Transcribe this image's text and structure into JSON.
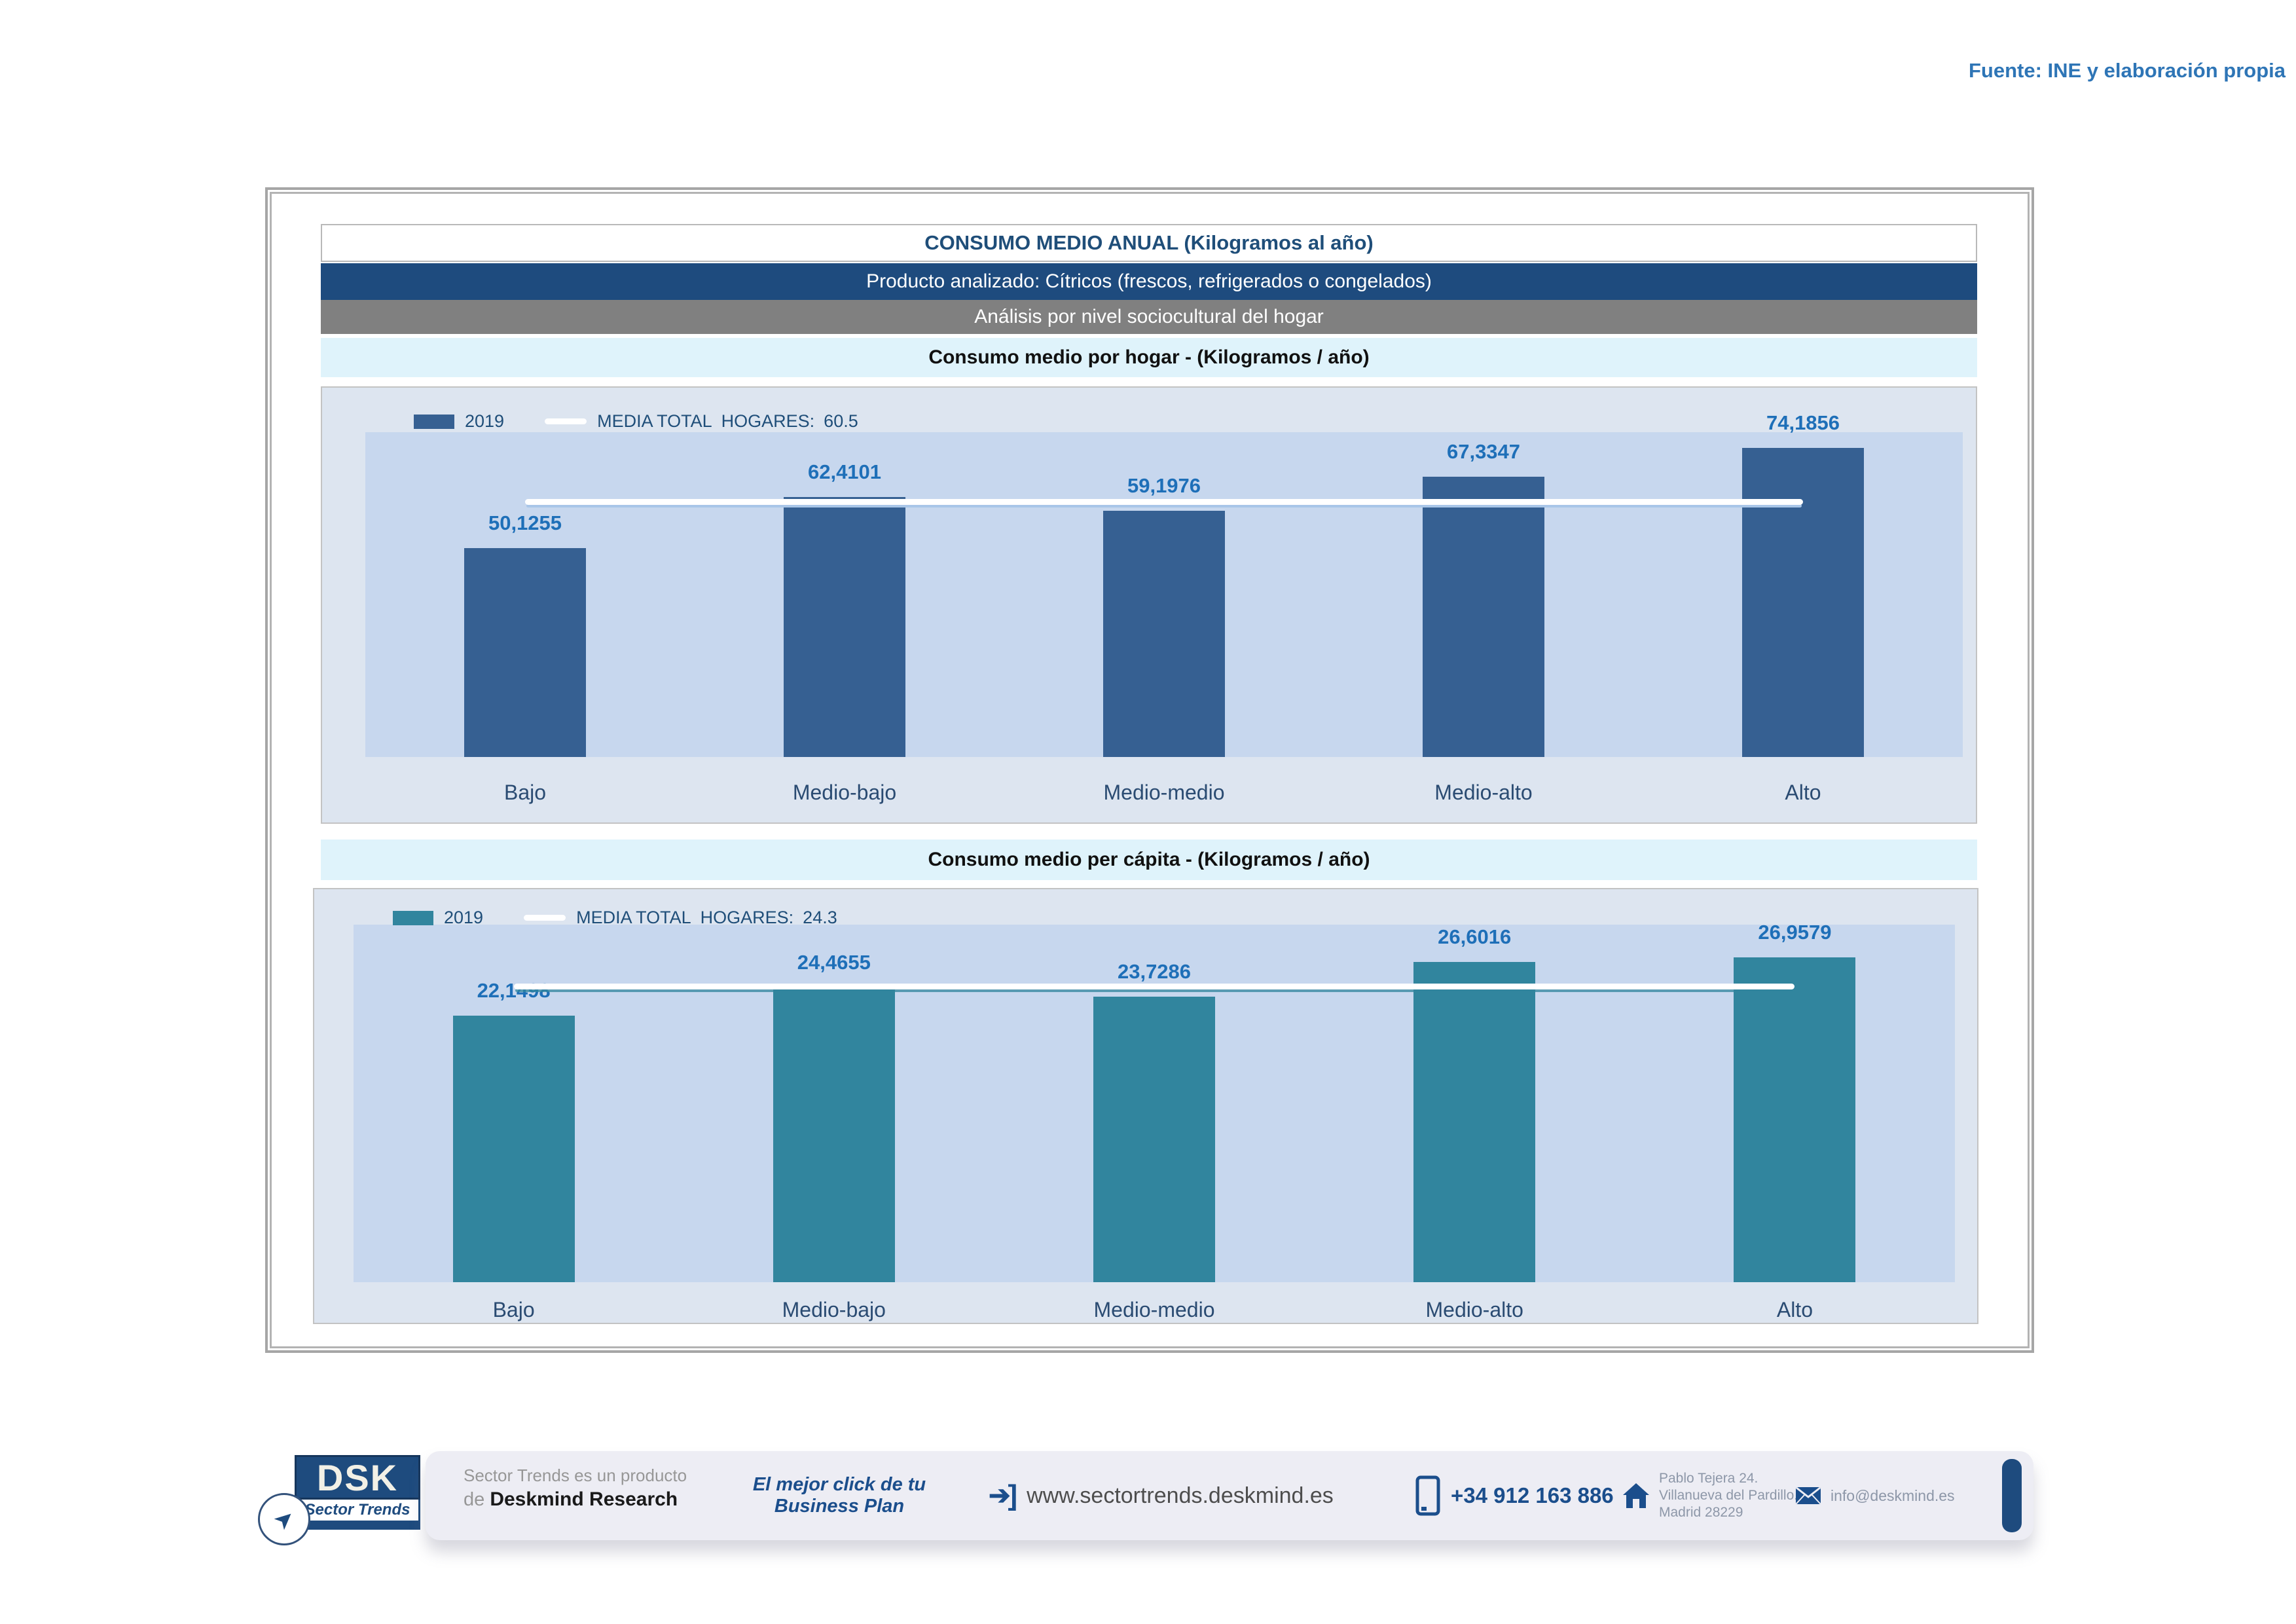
{
  "source_note": "Fuente: INE y elaboración propia",
  "header": {
    "title": "CONSUMO MEDIO ANUAL (Kilogramos al año)",
    "product": "Producto analizado: Cítricos (frescos, refrigerados o congelados)",
    "analysis": "Análisis por nivel sociocultural del hogar"
  },
  "colors": {
    "navy_header": "#1e4b7e",
    "gray_header": "#808080",
    "cyan_header": "#dff3fb",
    "chart_bg": "#dde5f0",
    "plot_bg": "#c7d7ee",
    "bar_blue": "#366092",
    "bar_teal": "#31859e",
    "value_label_blue": "#1e6fb8",
    "category_label": "#2a4b72",
    "media_line": "#ffffff",
    "source_note_blue": "#2e75b6",
    "footer_navy": "#1b4e8c"
  },
  "chart_data": [
    {
      "type": "bar",
      "section_title": "Consumo medio por hogar -  (Kilogramos / año)",
      "categories": [
        "Bajo",
        "Medio-bajo",
        "Medio-medio",
        "Medio-alto",
        "Alto"
      ],
      "values": [
        50.1255,
        62.4101,
        59.1976,
        67.3347,
        74.1856
      ],
      "value_labels": [
        "50,1255",
        "62,4101",
        "59,1976",
        "67,3347",
        "74,1856"
      ],
      "series_name": "2019",
      "mean_label": "MEDIA TOTAL  HOGARES:",
      "mean_value": 60.5,
      "mean_value_label": "60.5",
      "ylim": [
        0,
        78
      ],
      "bar_color": "#366092",
      "grid": false,
      "legend_position": "top-left"
    },
    {
      "type": "bar",
      "section_title": "Consumo medio per cápita -  (Kilogramos / año)",
      "categories": [
        "Bajo",
        "Medio-bajo",
        "Medio-medio",
        "Medio-alto",
        "Alto"
      ],
      "values": [
        22.1498,
        24.4655,
        23.7286,
        26.6016,
        26.9579
      ],
      "value_labels": [
        "22,1498",
        "24,4655",
        "23,7286",
        "26,6016",
        "26,9579"
      ],
      "series_name": "2019",
      "mean_label": "MEDIA TOTAL  HOGARES:",
      "mean_value": 24.3,
      "mean_value_label": "24.3",
      "ylim": [
        0,
        29.7
      ],
      "bar_color": "#31859e",
      "grid": false,
      "legend_position": "top-left"
    }
  ],
  "footer": {
    "logo_text": "DSK",
    "logo_subtext": "Sector Trends",
    "product_line1": "Sector Trends es un producto",
    "product_line2_prefix": "de ",
    "product_line2_bold": "Deskmind Research",
    "tagline": "El mejor click de tu Business Plan",
    "website": "www.sectortrends.deskmind.es",
    "phone": "+34 912 163 886",
    "address_line1": "Pablo Tejera 24.",
    "address_line2": "Villanueva del Pardillo.",
    "address_line3": "Madrid 28229",
    "email": "info@deskmind.es"
  }
}
